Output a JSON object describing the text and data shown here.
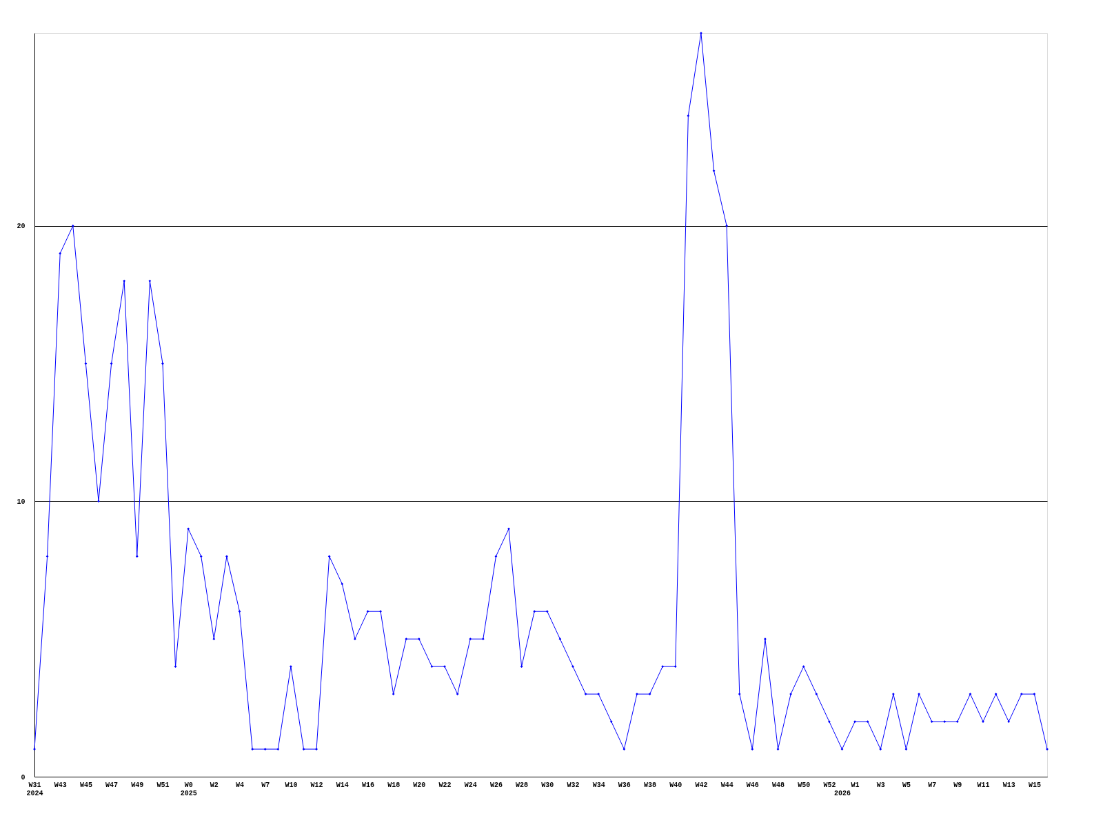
{
  "chart_data": {
    "type": "line",
    "categories": [
      "W31\n2024",
      null,
      "W43",
      null,
      "W45",
      null,
      "W47",
      null,
      "W49",
      null,
      "W51",
      null,
      "W0\n2025",
      null,
      "W2",
      null,
      "W4",
      null,
      "W7",
      null,
      "W10",
      null,
      "W12",
      null,
      "W14",
      null,
      "W16",
      null,
      "W18",
      null,
      "W20",
      null,
      "W22",
      null,
      "W24",
      null,
      "W26",
      null,
      "W28",
      null,
      "W30",
      null,
      "W32",
      null,
      "W34",
      null,
      "W36",
      null,
      "W38",
      null,
      "W40",
      null,
      "W42",
      null,
      "W44",
      null,
      "W46",
      null,
      "W48",
      null,
      "W50",
      null,
      "W52",
      "\n2026",
      "W1",
      null,
      "W3",
      null,
      "W5",
      null,
      "W7",
      null,
      "W9",
      null,
      "W11",
      null,
      "W13",
      null,
      "W15",
      null
    ],
    "series": [
      {
        "color": "#0000ff",
        "values": [
          1,
          8,
          19,
          20,
          15,
          10,
          15,
          18,
          8,
          18,
          15,
          4,
          9,
          8,
          5,
          8,
          6,
          1,
          1,
          1,
          4,
          1,
          1,
          8,
          7,
          5,
          6,
          6,
          3,
          5,
          5,
          4,
          4,
          3,
          5,
          5,
          8,
          9,
          4,
          6,
          6,
          5,
          4,
          3,
          3,
          2,
          1,
          3,
          3,
          4,
          4,
          24,
          27,
          22,
          20,
          3,
          1,
          5,
          1,
          3,
          4,
          3,
          2,
          1,
          2,
          2,
          1,
          3,
          1,
          3,
          2,
          2,
          2,
          3,
          2,
          3,
          2,
          3,
          3,
          1
        ]
      }
    ],
    "ylim": [
      0,
      27
    ],
    "yticks": [
      0,
      10,
      20
    ],
    "grid": "y",
    "marker": "diamond",
    "line_style": "solid",
    "legend": false
  }
}
